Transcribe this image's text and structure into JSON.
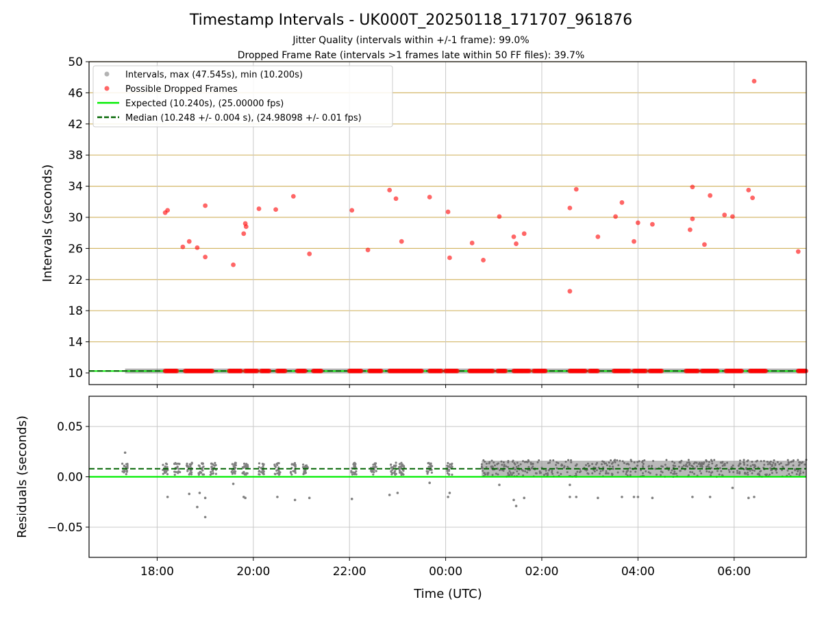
{
  "figure": {
    "title": "Timestamp Intervals - UK000T_20250118_171707_961876",
    "subtitle1": "Jitter Quality (intervals within +/-1 frame): 99.0%",
    "subtitle2": "Dropped Frame Rate (intervals >1 frames late within 50 FF files): 39.7%",
    "xlabel": "Time (UTC)"
  },
  "colors": {
    "intervals": "#808080",
    "dropped": "#ff0000",
    "expected": "#00ee00",
    "median": "#006400",
    "hgrid": "#d4b86a",
    "grid": "#c8c8c8"
  },
  "chart_data": [
    {
      "type": "scatter",
      "ylabel": "Intervals (seconds)",
      "xlim": [
        "16:35",
        "07:30"
      ],
      "ylim": [
        8.5,
        50
      ],
      "xticks": [
        "18:00",
        "20:00",
        "22:00",
        "00:00",
        "02:00",
        "04:00",
        "06:00"
      ],
      "yticks": [
        10,
        14,
        18,
        22,
        26,
        30,
        34,
        38,
        42,
        46,
        50
      ],
      "grid": true,
      "legend_position": "upper-left",
      "legend": [
        "Intervals, max (47.545s), min (10.200s)",
        "Possible Dropped Frames",
        "Expected (10.240s), (25.00000 fps)",
        "Median (10.248 +/- 0.004 s), (24.98098 +/- 0.01 fps)"
      ],
      "expected_line": 10.24,
      "median_line": 10.248,
      "intervals_range": {
        "x": [
          "17:20",
          "07:30"
        ],
        "y": 10.25
      },
      "dropped_baseline_segments": [
        [
          "18:10",
          "18:25"
        ],
        [
          "18:35",
          "19:10"
        ],
        [
          "19:30",
          "19:45"
        ],
        [
          "19:50",
          "20:05"
        ],
        [
          "20:10",
          "20:20"
        ],
        [
          "20:30",
          "20:40"
        ],
        [
          "20:55",
          "21:05"
        ],
        [
          "21:15",
          "21:25"
        ],
        [
          "22:00",
          "22:15"
        ],
        [
          "22:25",
          "22:40"
        ],
        [
          "22:50",
          "23:30"
        ],
        [
          "23:40",
          "23:55"
        ],
        [
          "00:00",
          "00:15"
        ],
        [
          "00:30",
          "01:00"
        ],
        [
          "01:05",
          "01:15"
        ],
        [
          "01:25",
          "01:45"
        ],
        [
          "01:50",
          "02:05"
        ],
        [
          "02:35",
          "02:55"
        ],
        [
          "03:00",
          "03:10"
        ],
        [
          "03:30",
          "03:50"
        ],
        [
          "03:55",
          "04:10"
        ],
        [
          "04:15",
          "04:30"
        ],
        [
          "05:00",
          "05:15"
        ],
        [
          "05:20",
          "05:40"
        ],
        [
          "05:50",
          "06:10"
        ],
        [
          "06:20",
          "06:40"
        ],
        [
          "07:20",
          "07:30"
        ]
      ],
      "dropped_frames": [
        {
          "x": "18:10",
          "y": 30.6
        },
        {
          "x": "18:13",
          "y": 30.9
        },
        {
          "x": "18:32",
          "y": 26.2
        },
        {
          "x": "18:40",
          "y": 26.9
        },
        {
          "x": "18:50",
          "y": 26.1
        },
        {
          "x": "19:00",
          "y": 31.5
        },
        {
          "x": "19:00",
          "y": 24.9
        },
        {
          "x": "19:35",
          "y": 23.9
        },
        {
          "x": "19:48",
          "y": 27.9
        },
        {
          "x": "19:50",
          "y": 29.2
        },
        {
          "x": "19:51",
          "y": 28.8
        },
        {
          "x": "20:07",
          "y": 31.1
        },
        {
          "x": "20:28",
          "y": 31.0
        },
        {
          "x": "20:50",
          "y": 32.7
        },
        {
          "x": "21:10",
          "y": 25.3
        },
        {
          "x": "22:03",
          "y": 30.9
        },
        {
          "x": "22:23",
          "y": 25.8
        },
        {
          "x": "22:50",
          "y": 33.5
        },
        {
          "x": "22:58",
          "y": 32.4
        },
        {
          "x": "23:05",
          "y": 26.9
        },
        {
          "x": "23:40",
          "y": 32.6
        },
        {
          "x": "00:03",
          "y": 30.7
        },
        {
          "x": "00:05",
          "y": 24.8
        },
        {
          "x": "00:33",
          "y": 26.7
        },
        {
          "x": "00:47",
          "y": 24.5
        },
        {
          "x": "01:07",
          "y": 30.1
        },
        {
          "x": "01:25",
          "y": 27.5
        },
        {
          "x": "01:28",
          "y": 26.6
        },
        {
          "x": "01:38",
          "y": 27.9
        },
        {
          "x": "02:35",
          "y": 31.2
        },
        {
          "x": "02:35",
          "y": 20.5
        },
        {
          "x": "02:43",
          "y": 33.6
        },
        {
          "x": "03:10",
          "y": 27.5
        },
        {
          "x": "03:32",
          "y": 30.1
        },
        {
          "x": "03:40",
          "y": 31.9
        },
        {
          "x": "03:55",
          "y": 26.9
        },
        {
          "x": "04:00",
          "y": 29.3
        },
        {
          "x": "04:18",
          "y": 29.1
        },
        {
          "x": "05:05",
          "y": 28.4
        },
        {
          "x": "05:08",
          "y": 33.9
        },
        {
          "x": "05:08",
          "y": 29.8
        },
        {
          "x": "05:23",
          "y": 26.5
        },
        {
          "x": "05:30",
          "y": 32.8
        },
        {
          "x": "05:48",
          "y": 30.3
        },
        {
          "x": "05:58",
          "y": 30.1
        },
        {
          "x": "06:18",
          "y": 33.5
        },
        {
          "x": "06:23",
          "y": 32.5
        },
        {
          "x": "06:25",
          "y": 47.5
        },
        {
          "x": "07:20",
          "y": 25.6
        }
      ]
    },
    {
      "type": "scatter",
      "ylabel": "Residuals (seconds)",
      "xlim": [
        "16:35",
        "07:30"
      ],
      "ylim": [
        -0.08,
        0.08
      ],
      "xticks": [
        "18:00",
        "20:00",
        "22:00",
        "00:00",
        "02:00",
        "04:00",
        "06:00"
      ],
      "yticks": [
        -0.05,
        0.0,
        0.05
      ],
      "ytick_labels": [
        "−0.05",
        "0.00",
        "0.05"
      ],
      "grid": true,
      "expected_line": 0.0,
      "median_line": 0.008,
      "residual_clusters": [
        "17:20",
        "18:10",
        "18:25",
        "18:40",
        "18:55",
        "19:10",
        "19:35",
        "19:50",
        "20:10",
        "20:30",
        "20:50",
        "21:05",
        "22:05",
        "22:30",
        "22:55",
        "23:05",
        "23:40",
        "00:05"
      ],
      "dense_band": {
        "x": [
          "00:45",
          "07:30"
        ],
        "y": [
          0.0,
          0.016
        ]
      },
      "residual_outliers": [
        {
          "x": "17:20",
          "y": 0.024
        },
        {
          "x": "18:13",
          "y": -0.02
        },
        {
          "x": "18:40",
          "y": -0.017
        },
        {
          "x": "18:50",
          "y": -0.03
        },
        {
          "x": "18:53",
          "y": -0.016
        },
        {
          "x": "19:00",
          "y": -0.04
        },
        {
          "x": "19:00",
          "y": -0.021
        },
        {
          "x": "19:35",
          "y": -0.007
        },
        {
          "x": "19:48",
          "y": -0.02
        },
        {
          "x": "19:50",
          "y": -0.021
        },
        {
          "x": "20:30",
          "y": -0.02
        },
        {
          "x": "20:52",
          "y": -0.023
        },
        {
          "x": "21:10",
          "y": -0.021
        },
        {
          "x": "22:03",
          "y": -0.022
        },
        {
          "x": "22:50",
          "y": -0.018
        },
        {
          "x": "23:00",
          "y": -0.016
        },
        {
          "x": "23:40",
          "y": -0.006
        },
        {
          "x": "00:03",
          "y": -0.02
        },
        {
          "x": "00:05",
          "y": -0.016
        },
        {
          "x": "01:07",
          "y": -0.008
        },
        {
          "x": "01:25",
          "y": -0.023
        },
        {
          "x": "01:28",
          "y": -0.029
        },
        {
          "x": "01:38",
          "y": -0.021
        },
        {
          "x": "02:35",
          "y": -0.02
        },
        {
          "x": "02:35",
          "y": -0.008
        },
        {
          "x": "02:43",
          "y": -0.02
        },
        {
          "x": "03:10",
          "y": -0.021
        },
        {
          "x": "03:40",
          "y": -0.02
        },
        {
          "x": "03:55",
          "y": -0.02
        },
        {
          "x": "04:00",
          "y": -0.02
        },
        {
          "x": "04:18",
          "y": -0.021
        },
        {
          "x": "05:08",
          "y": -0.02
        },
        {
          "x": "05:30",
          "y": -0.02
        },
        {
          "x": "05:58",
          "y": -0.011
        },
        {
          "x": "06:18",
          "y": -0.021
        },
        {
          "x": "06:25",
          "y": -0.02
        }
      ]
    }
  ]
}
